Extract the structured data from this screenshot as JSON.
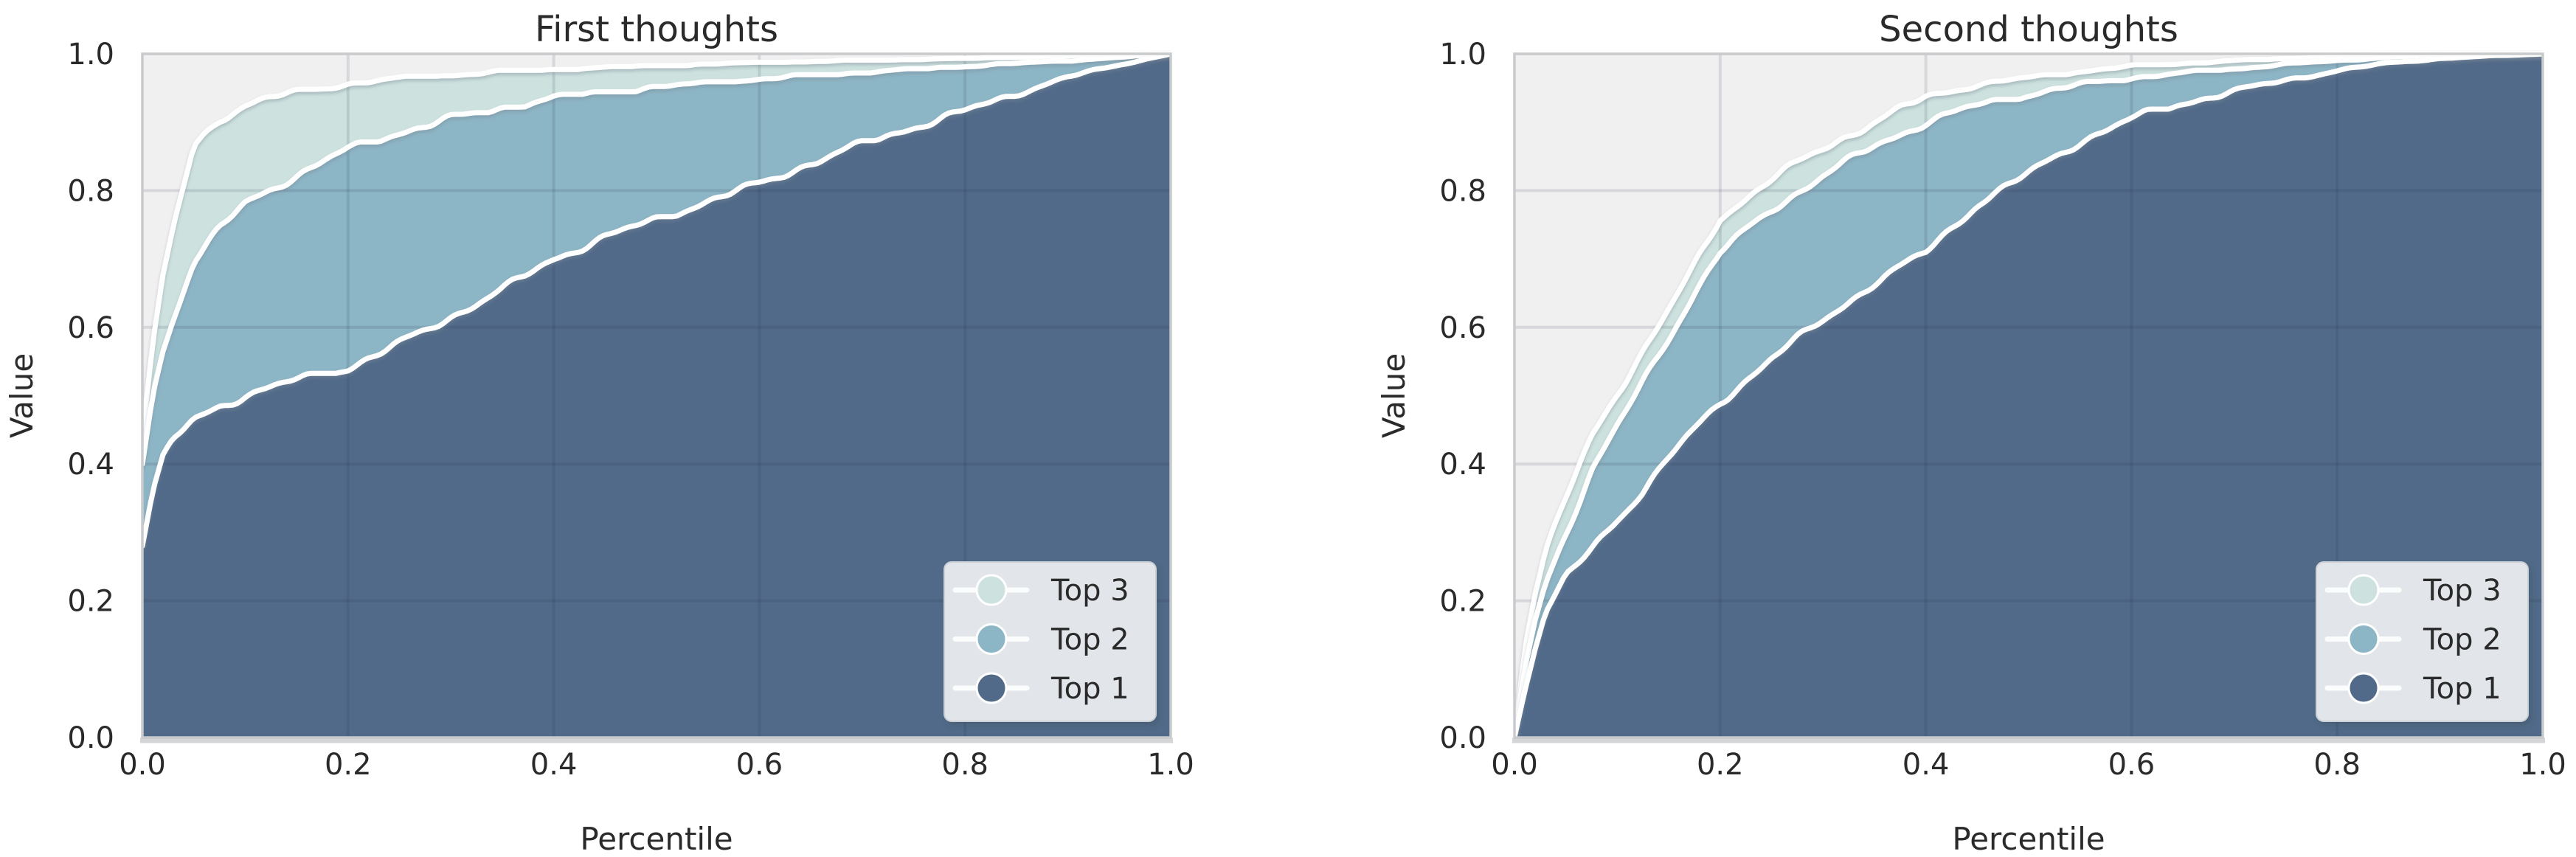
{
  "palette": {
    "figure_bg": "#ffffff",
    "plot_bg": "#f1f0f1",
    "grid_overlay": "rgba(35,45,70,0.12)",
    "spine": "#c9cacc",
    "bottom_spine": "#d4d5d7",
    "curve_stroke": "#ffffff",
    "text": "#2a2a2a",
    "legend_bg": "rgba(233,236,240,0.95)",
    "legend_border": "#ccd1d6",
    "legend_line": "rgba(255,255,255,0.85)",
    "top3_color": "#cde2df",
    "top2_color": "#8cb5c5",
    "top1_color": "#516a89"
  },
  "chart_data": [
    {
      "type": "area",
      "title": "First thoughts",
      "xlabel": "Percentile",
      "ylabel": "Value",
      "xlim": [
        0,
        1
      ],
      "ylim": [
        0,
        1
      ],
      "grid": true,
      "legend_position": "lower right",
      "xticks": [
        "0.0",
        "0.2",
        "0.4",
        "0.6",
        "0.8",
        "1.0"
      ],
      "yticks": [
        "0.0",
        "0.2",
        "0.4",
        "0.6",
        "0.8",
        "1.0"
      ],
      "legend": [
        "Top 3",
        "Top 2",
        "Top 1"
      ],
      "series": [
        {
          "name": "Top 3",
          "color": "#cde2df",
          "x": [
            0,
            0.01,
            0.02,
            0.03,
            0.05,
            0.075,
            0.1,
            0.125,
            0.15,
            0.175,
            0.2,
            0.25,
            0.3,
            0.35,
            0.4,
            0.45,
            0.5,
            0.55,
            0.6,
            0.65,
            0.7,
            0.75,
            0.8,
            0.85,
            0.9,
            0.95,
            1.0
          ],
          "y": [
            0.44,
            0.575,
            0.675,
            0.745,
            0.865,
            0.905,
            0.925,
            0.936,
            0.944,
            0.95,
            0.956,
            0.964,
            0.969,
            0.974,
            0.977,
            0.98,
            0.982,
            0.985,
            0.987,
            0.989,
            0.99,
            0.992,
            0.993,
            0.995,
            0.997,
            0.998,
            1.0
          ]
        },
        {
          "name": "Top 2",
          "color": "#8cb5c5",
          "x": [
            0,
            0.01,
            0.02,
            0.03,
            0.05,
            0.075,
            0.1,
            0.125,
            0.15,
            0.175,
            0.2,
            0.25,
            0.3,
            0.35,
            0.4,
            0.45,
            0.5,
            0.55,
            0.6,
            0.65,
            0.7,
            0.75,
            0.8,
            0.85,
            0.9,
            0.95,
            1.0
          ],
          "y": [
            0.4,
            0.5,
            0.565,
            0.615,
            0.695,
            0.745,
            0.78,
            0.803,
            0.822,
            0.842,
            0.86,
            0.885,
            0.905,
            0.921,
            0.935,
            0.944,
            0.951,
            0.957,
            0.963,
            0.968,
            0.973,
            0.977,
            0.982,
            0.986,
            0.99,
            0.995,
            1.0
          ]
        },
        {
          "name": "Top 1",
          "color": "#516a89",
          "x": [
            0,
            0.01,
            0.02,
            0.03,
            0.05,
            0.075,
            0.1,
            0.125,
            0.15,
            0.175,
            0.2,
            0.25,
            0.3,
            0.35,
            0.4,
            0.45,
            0.5,
            0.55,
            0.6,
            0.65,
            0.7,
            0.75,
            0.8,
            0.85,
            0.9,
            0.95,
            1.0
          ],
          "y": [
            0.28,
            0.36,
            0.41,
            0.435,
            0.465,
            0.485,
            0.5,
            0.512,
            0.523,
            0.532,
            0.54,
            0.576,
            0.615,
            0.655,
            0.7,
            0.732,
            0.758,
            0.784,
            0.81,
            0.84,
            0.868,
            0.893,
            0.916,
            0.942,
            0.966,
            0.984,
            1.0
          ]
        }
      ]
    },
    {
      "type": "area",
      "title": "Second thoughts",
      "xlabel": "Percentile",
      "ylabel": "Value",
      "xlim": [
        0,
        1
      ],
      "ylim": [
        0,
        1
      ],
      "grid": true,
      "legend_position": "lower right",
      "xticks": [
        "0.0",
        "0.2",
        "0.4",
        "0.6",
        "0.8",
        "1.0"
      ],
      "yticks": [
        "0.0",
        "0.2",
        "0.4",
        "0.6",
        "0.8",
        "1.0"
      ],
      "legend": [
        "Top 3",
        "Top 2",
        "Top 1"
      ],
      "series": [
        {
          "name": "Top 3",
          "color": "#cde2df",
          "x": [
            0,
            0.01,
            0.02,
            0.03,
            0.05,
            0.075,
            0.1,
            0.125,
            0.15,
            0.175,
            0.2,
            0.25,
            0.3,
            0.35,
            0.4,
            0.45,
            0.5,
            0.55,
            0.6,
            0.65,
            0.7,
            0.75,
            0.8,
            0.85,
            0.9,
            0.95,
            1.0
          ],
          "y": [
            0,
            0.13,
            0.21,
            0.27,
            0.35,
            0.44,
            0.505,
            0.565,
            0.625,
            0.69,
            0.76,
            0.817,
            0.862,
            0.9,
            0.937,
            0.955,
            0.965,
            0.974,
            0.982,
            0.986,
            0.99,
            0.993,
            0.996,
            0.999,
            1.0,
            1.0,
            1.0
          ]
        },
        {
          "name": "Top 2",
          "color": "#8cb5c5",
          "x": [
            0,
            0.01,
            0.02,
            0.03,
            0.05,
            0.075,
            0.1,
            0.125,
            0.15,
            0.175,
            0.2,
            0.25,
            0.3,
            0.35,
            0.4,
            0.45,
            0.5,
            0.55,
            0.6,
            0.65,
            0.7,
            0.75,
            0.8,
            0.85,
            0.9,
            0.95,
            1.0
          ],
          "y": [
            0,
            0.1,
            0.17,
            0.225,
            0.3,
            0.39,
            0.455,
            0.52,
            0.585,
            0.65,
            0.71,
            0.772,
            0.822,
            0.865,
            0.9,
            0.925,
            0.94,
            0.955,
            0.965,
            0.972,
            0.978,
            0.985,
            0.99,
            0.995,
            0.998,
            1.0,
            1.0
          ]
        },
        {
          "name": "Top 1",
          "color": "#516a89",
          "x": [
            0,
            0.01,
            0.02,
            0.03,
            0.05,
            0.075,
            0.1,
            0.125,
            0.15,
            0.175,
            0.2,
            0.25,
            0.3,
            0.35,
            0.4,
            0.45,
            0.5,
            0.55,
            0.6,
            0.65,
            0.7,
            0.75,
            0.8,
            0.85,
            0.9,
            0.95,
            1.0
          ],
          "y": [
            0,
            0.07,
            0.13,
            0.18,
            0.235,
            0.275,
            0.32,
            0.36,
            0.41,
            0.45,
            0.49,
            0.555,
            0.61,
            0.665,
            0.71,
            0.78,
            0.825,
            0.872,
            0.905,
            0.928,
            0.945,
            0.962,
            0.975,
            0.987,
            0.993,
            0.997,
            1.0
          ]
        }
      ]
    }
  ]
}
